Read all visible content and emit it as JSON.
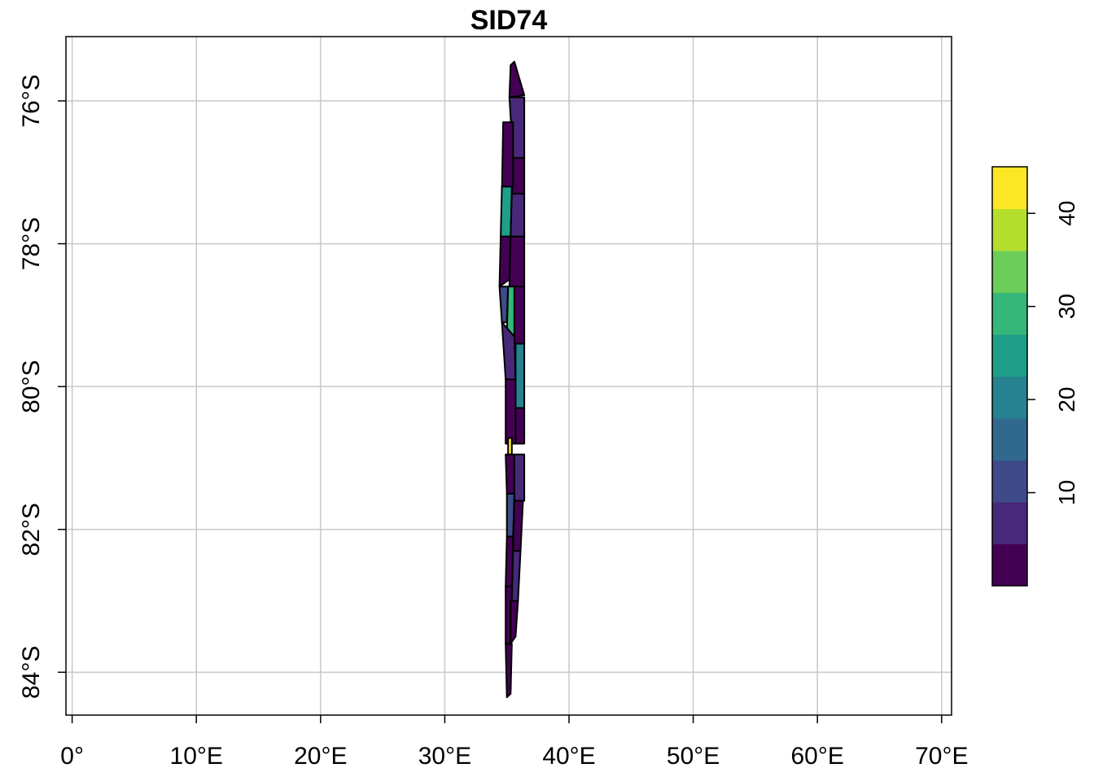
{
  "title": "SID74",
  "x_axis": {
    "ticks": [
      0,
      10,
      20,
      30,
      40,
      50,
      60,
      70
    ],
    "labels": [
      "0°",
      "10°E",
      "20°E",
      "30°E",
      "40°E",
      "50°E",
      "60°E",
      "70°E"
    ]
  },
  "y_axis": {
    "ticks": [
      -76,
      -78,
      -80,
      -82,
      -84
    ],
    "labels": [
      "76°S",
      "78°S",
      "80°S",
      "82°S",
      "84°S"
    ]
  },
  "legend": {
    "ticks": [
      10,
      20,
      30,
      40
    ],
    "labels": [
      "10",
      "20",
      "30",
      "40"
    ],
    "range": [
      0,
      45
    ],
    "colors": [
      "#440154",
      "#482878",
      "#3E4A89",
      "#31688E",
      "#26828E",
      "#1F9E89",
      "#35B779",
      "#6DCD59",
      "#B4DE2C",
      "#FDE725"
    ]
  },
  "chart_data": {
    "type": "heatmap",
    "title": "SID74",
    "xlim": [
      -0.5,
      70.8
    ],
    "ylim": [
      -84.6,
      -75.1
    ],
    "grid": true,
    "legend_position": "right",
    "outline_color": "#000000",
    "features": [
      {
        "level": 0,
        "poly": [
          [
            35.6,
            -75.45
          ],
          [
            36.4,
            -75.92
          ],
          [
            35.2,
            -75.95
          ],
          [
            35.3,
            -75.5
          ]
        ]
      },
      {
        "level": 1,
        "poly": [
          [
            35.2,
            -75.95
          ],
          [
            36.4,
            -75.95
          ],
          [
            36.4,
            -76.8
          ],
          [
            35.5,
            -76.8
          ]
        ]
      },
      {
        "level": 0,
        "poly": [
          [
            35.5,
            -76.8
          ],
          [
            36.4,
            -76.8
          ],
          [
            36.4,
            -77.3
          ],
          [
            35.4,
            -77.3
          ]
        ]
      },
      {
        "level": 0,
        "poly": [
          [
            34.7,
            -76.3
          ],
          [
            35.5,
            -76.3
          ],
          [
            35.5,
            -77.2
          ],
          [
            34.6,
            -77.3
          ]
        ]
      },
      {
        "level": 5,
        "poly": [
          [
            34.6,
            -77.2
          ],
          [
            35.4,
            -77.2
          ],
          [
            35.3,
            -77.9
          ],
          [
            34.5,
            -77.9
          ]
        ]
      },
      {
        "level": 1,
        "poly": [
          [
            35.4,
            -77.3
          ],
          [
            36.4,
            -77.3
          ],
          [
            36.4,
            -77.9
          ],
          [
            35.3,
            -77.9
          ]
        ]
      },
      {
        "level": 0,
        "poly": [
          [
            34.5,
            -77.9
          ],
          [
            35.3,
            -77.9
          ],
          [
            35.2,
            -78.5
          ],
          [
            34.4,
            -78.6
          ]
        ]
      },
      {
        "level": 0,
        "poly": [
          [
            35.3,
            -77.9
          ],
          [
            36.4,
            -77.9
          ],
          [
            36.4,
            -78.6
          ],
          [
            35.2,
            -78.6
          ]
        ]
      },
      {
        "level": 2,
        "poly": [
          [
            34.4,
            -78.6
          ],
          [
            35.1,
            -78.6
          ],
          [
            35.0,
            -79.1
          ],
          [
            34.6,
            -79.1
          ]
        ]
      },
      {
        "level": 6,
        "poly": [
          [
            35.1,
            -78.6
          ],
          [
            35.6,
            -78.6
          ],
          [
            35.6,
            -79.3
          ],
          [
            35.0,
            -79.3
          ]
        ]
      },
      {
        "level": 0,
        "poly": [
          [
            35.6,
            -78.6
          ],
          [
            36.4,
            -78.6
          ],
          [
            36.4,
            -79.4
          ],
          [
            35.6,
            -79.4
          ]
        ]
      },
      {
        "level": 1,
        "poly": [
          [
            34.6,
            -79.1
          ],
          [
            35.6,
            -79.3
          ],
          [
            35.7,
            -79.9
          ],
          [
            34.9,
            -79.9
          ]
        ]
      },
      {
        "level": 4,
        "poly": [
          [
            35.7,
            -79.4
          ],
          [
            36.4,
            -79.4
          ],
          [
            36.4,
            -80.3
          ],
          [
            35.7,
            -80.3
          ]
        ]
      },
      {
        "level": 0,
        "poly": [
          [
            34.9,
            -79.9
          ],
          [
            35.7,
            -79.9
          ],
          [
            35.7,
            -80.8
          ],
          [
            34.9,
            -80.8
          ]
        ]
      },
      {
        "level": 0,
        "poly": [
          [
            35.7,
            -80.3
          ],
          [
            36.4,
            -80.3
          ],
          [
            36.4,
            -80.8
          ],
          [
            35.7,
            -80.8
          ]
        ]
      },
      {
        "level": 9,
        "poly": [
          [
            35.1,
            -80.72
          ],
          [
            35.4,
            -80.72
          ],
          [
            35.4,
            -80.95
          ],
          [
            35.1,
            -80.95
          ]
        ]
      },
      {
        "level": 0,
        "poly": [
          [
            34.9,
            -80.95
          ],
          [
            35.6,
            -80.95
          ],
          [
            35.6,
            -81.5
          ],
          [
            35.0,
            -81.5
          ]
        ]
      },
      {
        "level": 1,
        "poly": [
          [
            35.6,
            -80.95
          ],
          [
            36.4,
            -80.95
          ],
          [
            36.4,
            -81.6
          ],
          [
            35.6,
            -81.6
          ]
        ]
      },
      {
        "level": 2,
        "poly": [
          [
            35.0,
            -81.5
          ],
          [
            35.6,
            -81.5
          ],
          [
            35.5,
            -82.1
          ],
          [
            35.0,
            -82.1
          ]
        ]
      },
      {
        "level": 0,
        "poly": [
          [
            35.6,
            -81.6
          ],
          [
            36.3,
            -81.6
          ],
          [
            36.1,
            -82.3
          ],
          [
            35.5,
            -82.3
          ]
        ]
      },
      {
        "level": 0,
        "poly": [
          [
            35.0,
            -82.1
          ],
          [
            35.5,
            -82.1
          ],
          [
            35.4,
            -82.8
          ],
          [
            34.9,
            -82.8
          ]
        ]
      },
      {
        "level": 1,
        "poly": [
          [
            35.5,
            -82.3
          ],
          [
            36.1,
            -82.3
          ],
          [
            35.9,
            -83.0
          ],
          [
            35.4,
            -83.0
          ]
        ]
      },
      {
        "level": 0,
        "poly": [
          [
            34.9,
            -82.8
          ],
          [
            35.4,
            -82.8
          ],
          [
            35.3,
            -83.6
          ],
          [
            34.9,
            -83.6
          ]
        ]
      },
      {
        "level": 0,
        "poly": [
          [
            35.3,
            -83.0
          ],
          [
            35.9,
            -83.0
          ],
          [
            35.7,
            -83.5
          ],
          [
            35.3,
            -83.6
          ]
        ]
      },
      {
        "level": 0,
        "poly": [
          [
            34.9,
            -83.6
          ],
          [
            35.4,
            -83.6
          ],
          [
            35.3,
            -84.3
          ],
          [
            35.0,
            -84.35
          ]
        ]
      }
    ]
  }
}
